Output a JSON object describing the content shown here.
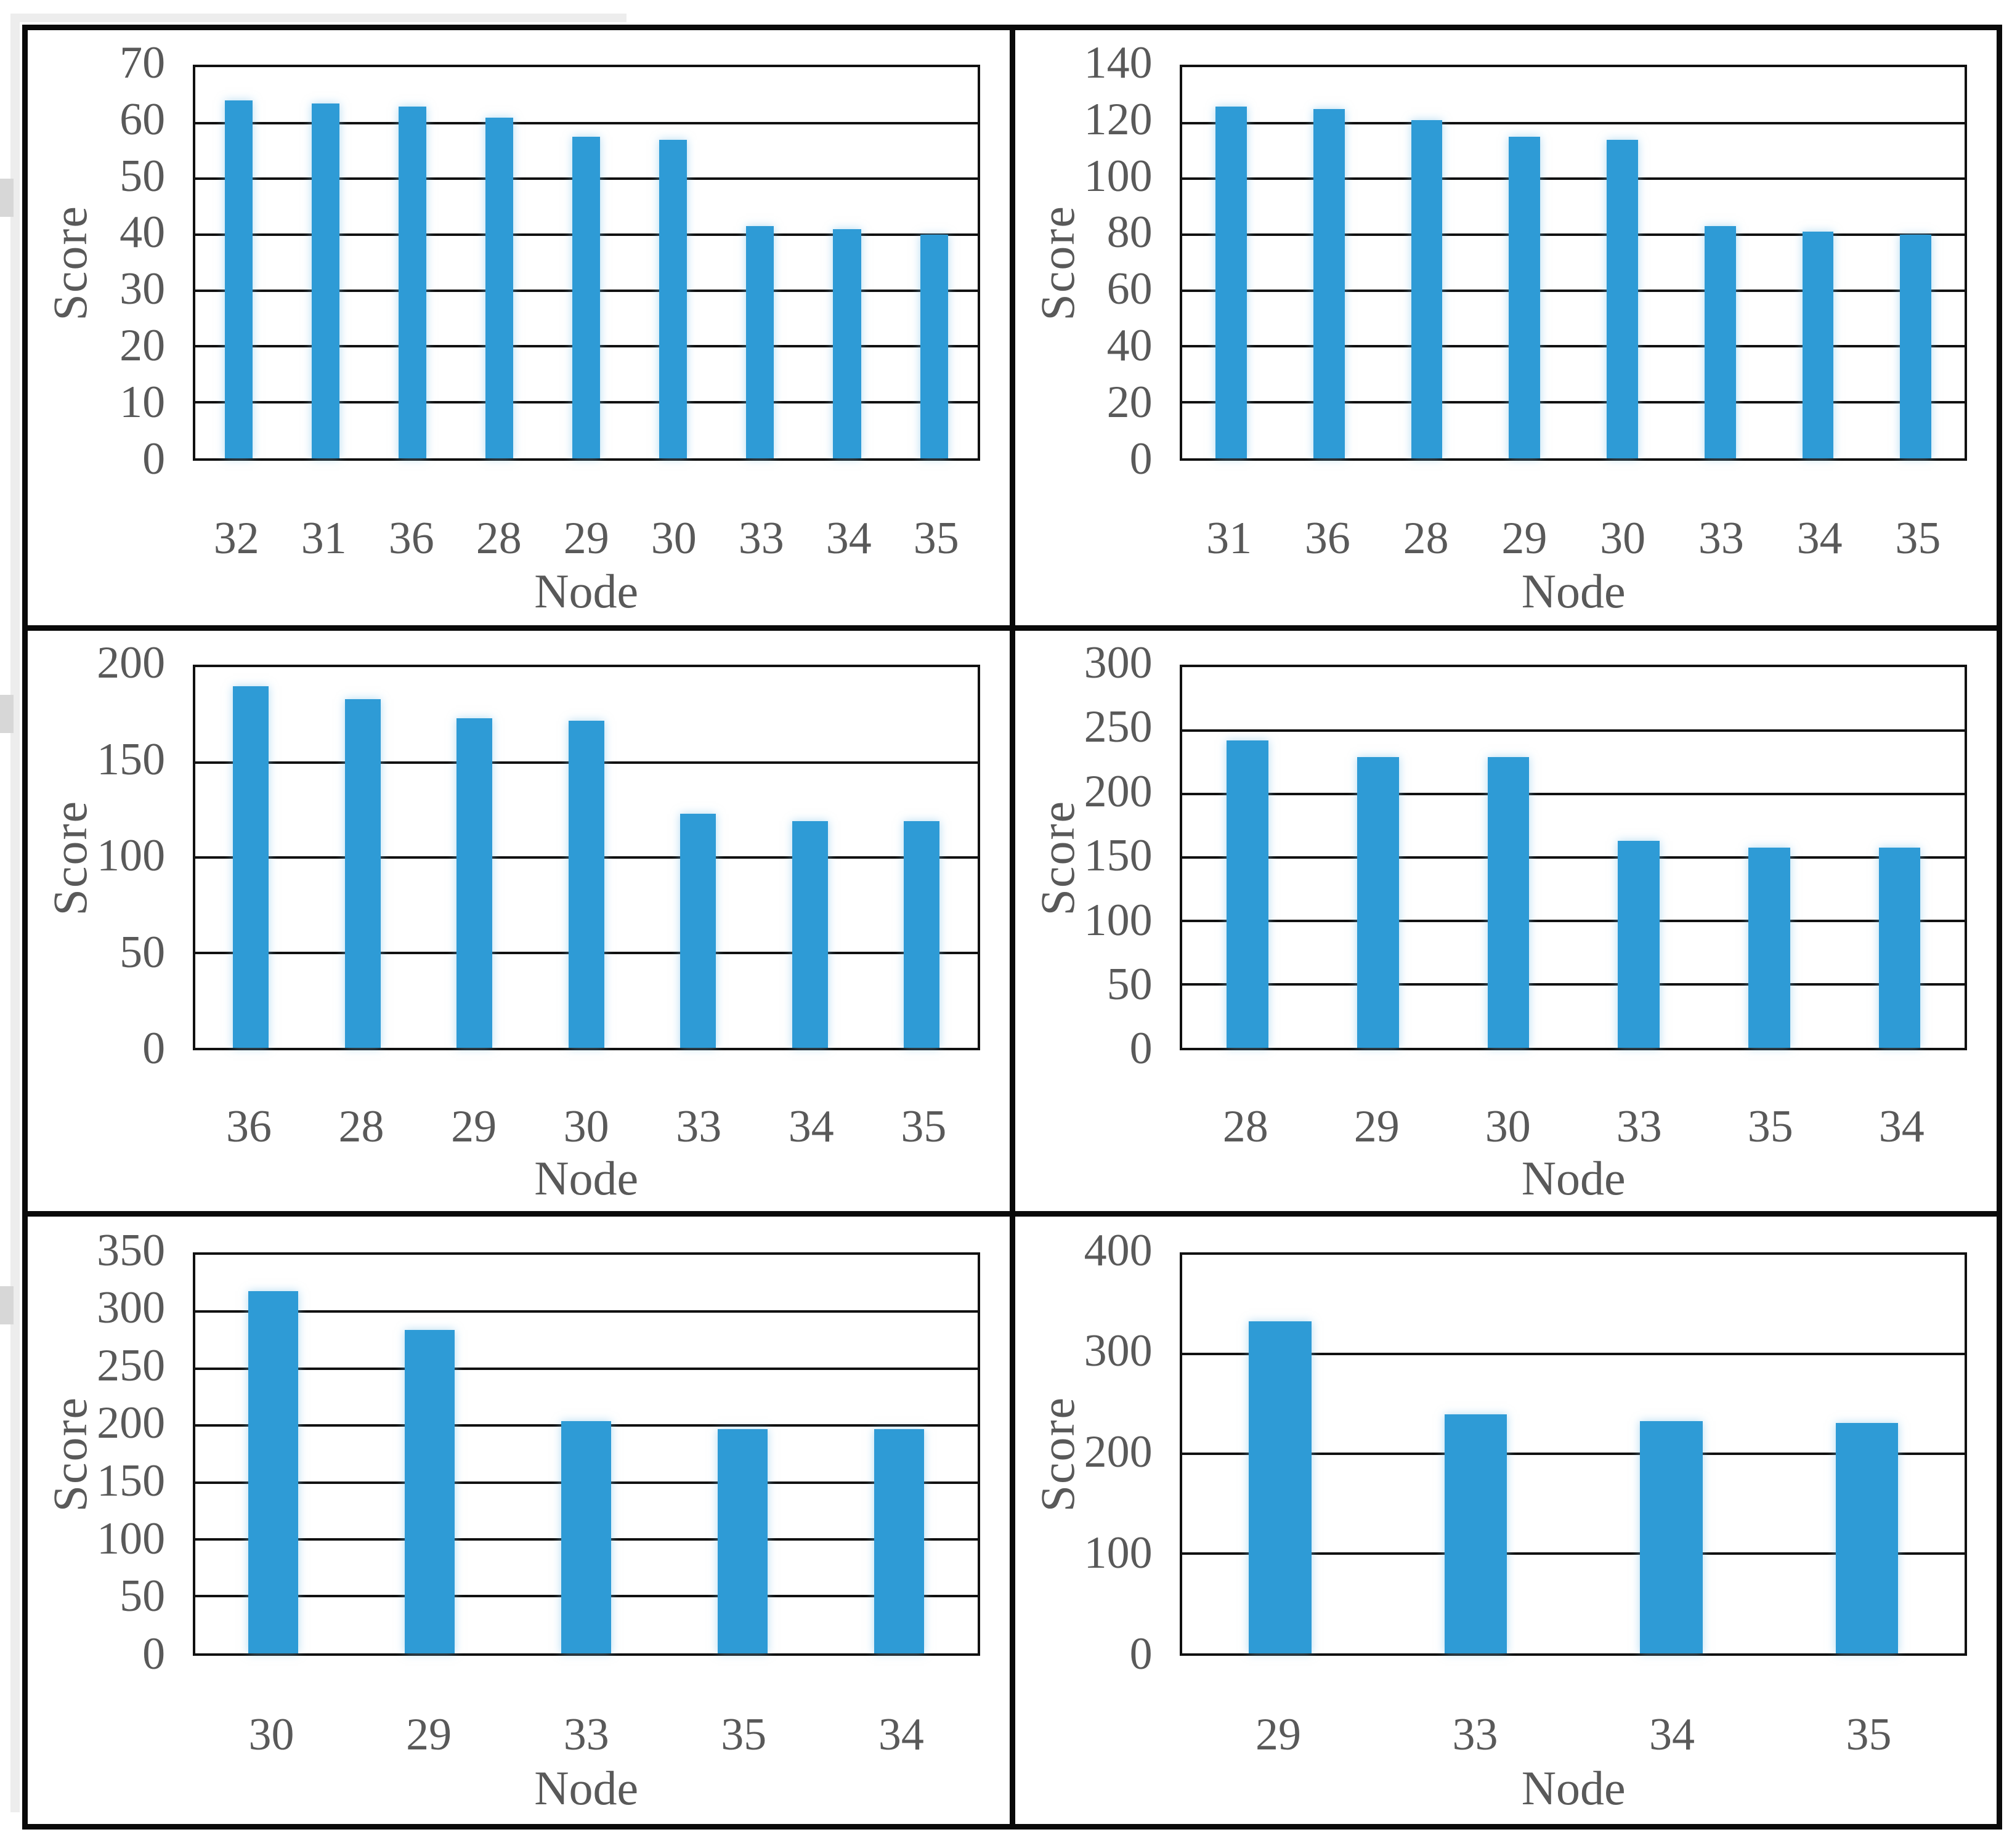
{
  "figure": {
    "ylabel": "Score",
    "xlabel": "Node",
    "bar_color": "#2E9BD6",
    "text_color": "#595959",
    "border_color": "#0a0a0a",
    "layout": "2x3 grid of bar chart panels"
  },
  "chart_data": [
    {
      "type": "bar",
      "title": "",
      "xlabel": "Node",
      "ylabel": "Score",
      "ylim": [
        0,
        70
      ],
      "yticks": [
        0,
        10,
        20,
        30,
        40,
        50,
        60,
        70
      ],
      "grid": true,
      "legend": false,
      "categories": [
        "32",
        "31",
        "36",
        "28",
        "29",
        "30",
        "33",
        "34",
        "35"
      ],
      "values": [
        64,
        63.5,
        63,
        61,
        57.5,
        57,
        41.5,
        41,
        40
      ]
    },
    {
      "type": "bar",
      "title": "",
      "xlabel": "Node",
      "ylabel": "Score",
      "ylim": [
        0,
        140
      ],
      "yticks": [
        0,
        20,
        40,
        60,
        80,
        100,
        120,
        140
      ],
      "grid": true,
      "legend": false,
      "categories": [
        "31",
        "36",
        "28",
        "29",
        "30",
        "33",
        "34",
        "35"
      ],
      "values": [
        126,
        125,
        121,
        115,
        114,
        83,
        81,
        80
      ]
    },
    {
      "type": "bar",
      "title": "",
      "xlabel": "Node",
      "ylabel": "Score",
      "ylim": [
        0,
        200
      ],
      "yticks": [
        0,
        50,
        100,
        150,
        200
      ],
      "grid": true,
      "legend": false,
      "categories": [
        "36",
        "28",
        "29",
        "30",
        "33",
        "34",
        "35"
      ],
      "values": [
        190,
        183,
        173,
        172,
        123,
        119,
        119
      ]
    },
    {
      "type": "bar",
      "title": "",
      "xlabel": "Node",
      "ylabel": "Score",
      "ylim": [
        0,
        300
      ],
      "yticks": [
        0,
        50,
        100,
        150,
        200,
        250,
        300
      ],
      "grid": true,
      "legend": false,
      "categories": [
        "28",
        "29",
        "30",
        "33",
        "35",
        "34"
      ],
      "values": [
        242,
        229,
        229,
        163,
        158,
        158
      ]
    },
    {
      "type": "bar",
      "title": "",
      "xlabel": "Node",
      "ylabel": "Score",
      "ylim": [
        0,
        350
      ],
      "yticks": [
        0,
        50,
        100,
        150,
        200,
        250,
        300,
        350
      ],
      "grid": true,
      "legend": false,
      "categories": [
        "30",
        "29",
        "33",
        "35",
        "34"
      ],
      "values": [
        318,
        284,
        204,
        197,
        197
      ]
    },
    {
      "type": "bar",
      "title": "",
      "xlabel": "Node",
      "ylabel": "Score",
      "ylim": [
        0,
        400
      ],
      "yticks": [
        0,
        100,
        200,
        300,
        400
      ],
      "grid": true,
      "legend": false,
      "categories": [
        "29",
        "33",
        "34",
        "35"
      ],
      "values": [
        333,
        240,
        233,
        231
      ]
    }
  ]
}
